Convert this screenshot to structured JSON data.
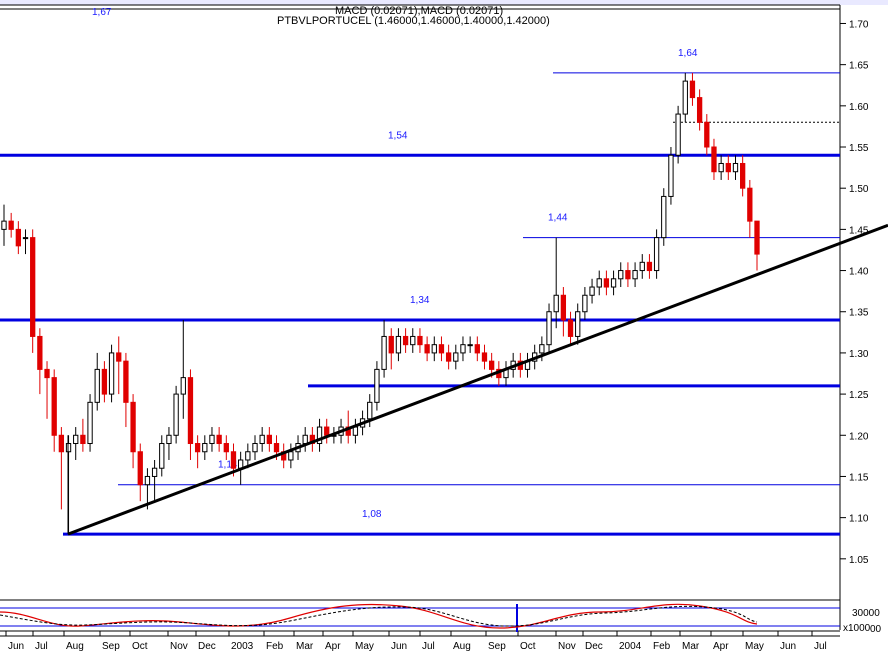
{
  "chart_data": {
    "type": "candlestick",
    "header_indicator": "MACD (0.02071),MACD (0.02071)",
    "title": "PTBVLPORTUCEL (1.46000,1.46000,1.40000,1.42000)",
    "top_panel_label": "1,67",
    "y_ticks": [
      "1.70",
      "1.65",
      "1.60",
      "1.55",
      "1.50",
      "1.45",
      "1.40",
      "1.35",
      "1.30",
      "1.25",
      "1.20",
      "1.15",
      "1.10",
      "1.05"
    ],
    "ylim": [
      1.0,
      1.72
    ],
    "x_ticks": [
      "Jun",
      "Jul",
      "Aug",
      "Sep",
      "Oct",
      "Nov",
      "Dec",
      "2003",
      "Feb",
      "Mar",
      "Apr",
      "May",
      "Jun",
      "Jul",
      "Aug",
      "Sep",
      "Oct",
      "Nov",
      "Dec",
      "2004",
      "Feb",
      "Mar",
      "Apr",
      "May",
      "Jun",
      "Jul"
    ],
    "levels": [
      {
        "value": 1.54,
        "label": "1,54",
        "style": "thick"
      },
      {
        "value": 1.34,
        "label": "1,34",
        "style": "thick"
      },
      {
        "value": 1.26,
        "label": "",
        "style": "thick"
      },
      {
        "value": 1.08,
        "label": "1,08",
        "style": "thick"
      },
      {
        "value": 1.64,
        "label": "1,64",
        "style": "thin"
      },
      {
        "value": 1.44,
        "label": "1,44",
        "style": "thin"
      },
      {
        "value": 1.14,
        "label": "1,14",
        "style": "thin"
      },
      {
        "value": 1.58,
        "label": "",
        "style": "dotted"
      }
    ],
    "trendline": {
      "from": [
        68,
        1.08
      ],
      "to": [
        888,
        1.455
      ]
    },
    "macd_ticks": [
      "30000",
      "x1000",
      "00"
    ],
    "candles": [
      [
        1.45,
        1.48,
        1.43,
        1.46
      ],
      [
        1.46,
        1.47,
        1.44,
        1.45
      ],
      [
        1.45,
        1.46,
        1.42,
        1.43
      ],
      [
        1.44,
        1.45,
        1.42,
        1.44
      ],
      [
        1.44,
        1.45,
        1.3,
        1.32
      ],
      [
        1.32,
        1.33,
        1.25,
        1.28
      ],
      [
        1.28,
        1.29,
        1.22,
        1.27
      ],
      [
        1.27,
        1.28,
        1.18,
        1.2
      ],
      [
        1.2,
        1.21,
        1.11,
        1.18
      ],
      [
        1.18,
        1.2,
        1.08,
        1.19
      ],
      [
        1.19,
        1.21,
        1.17,
        1.2
      ],
      [
        1.2,
        1.22,
        1.18,
        1.19
      ],
      [
        1.19,
        1.25,
        1.18,
        1.24
      ],
      [
        1.24,
        1.3,
        1.23,
        1.28
      ],
      [
        1.28,
        1.29,
        1.24,
        1.25
      ],
      [
        1.25,
        1.31,
        1.24,
        1.3
      ],
      [
        1.3,
        1.32,
        1.25,
        1.29
      ],
      [
        1.29,
        1.3,
        1.21,
        1.24
      ],
      [
        1.24,
        1.25,
        1.16,
        1.18
      ],
      [
        1.18,
        1.19,
        1.12,
        1.14
      ],
      [
        1.14,
        1.16,
        1.11,
        1.15
      ],
      [
        1.15,
        1.17,
        1.12,
        1.16
      ],
      [
        1.16,
        1.2,
        1.15,
        1.19
      ],
      [
        1.19,
        1.21,
        1.17,
        1.2
      ],
      [
        1.2,
        1.26,
        1.19,
        1.25
      ],
      [
        1.25,
        1.34,
        1.22,
        1.27
      ],
      [
        1.27,
        1.28,
        1.17,
        1.19
      ],
      [
        1.19,
        1.2,
        1.16,
        1.18
      ],
      [
        1.18,
        1.2,
        1.17,
        1.19
      ],
      [
        1.19,
        1.21,
        1.18,
        1.2
      ],
      [
        1.2,
        1.21,
        1.18,
        1.19
      ],
      [
        1.19,
        1.2,
        1.17,
        1.18
      ],
      [
        1.18,
        1.19,
        1.15,
        1.16
      ],
      [
        1.16,
        1.18,
        1.14,
        1.17
      ],
      [
        1.17,
        1.19,
        1.16,
        1.18
      ],
      [
        1.18,
        1.2,
        1.17,
        1.19
      ],
      [
        1.19,
        1.21,
        1.18,
        1.2
      ],
      [
        1.2,
        1.21,
        1.18,
        1.19
      ],
      [
        1.19,
        1.2,
        1.17,
        1.18
      ],
      [
        1.18,
        1.19,
        1.16,
        1.17
      ],
      [
        1.17,
        1.19,
        1.16,
        1.18
      ],
      [
        1.18,
        1.2,
        1.17,
        1.19
      ],
      [
        1.19,
        1.21,
        1.18,
        1.2
      ],
      [
        1.2,
        1.21,
        1.18,
        1.19
      ],
      [
        1.19,
        1.22,
        1.18,
        1.21
      ],
      [
        1.21,
        1.22,
        1.19,
        1.2
      ],
      [
        1.2,
        1.21,
        1.19,
        1.2
      ],
      [
        1.2,
        1.22,
        1.19,
        1.21
      ],
      [
        1.21,
        1.23,
        1.19,
        1.2
      ],
      [
        1.2,
        1.22,
        1.19,
        1.21
      ],
      [
        1.21,
        1.23,
        1.2,
        1.22
      ],
      [
        1.22,
        1.25,
        1.21,
        1.24
      ],
      [
        1.24,
        1.29,
        1.23,
        1.28
      ],
      [
        1.28,
        1.34,
        1.27,
        1.32
      ],
      [
        1.32,
        1.33,
        1.28,
        1.3
      ],
      [
        1.3,
        1.33,
        1.29,
        1.32
      ],
      [
        1.32,
        1.33,
        1.3,
        1.31
      ],
      [
        1.31,
        1.33,
        1.3,
        1.32
      ],
      [
        1.32,
        1.33,
        1.3,
        1.31
      ],
      [
        1.31,
        1.32,
        1.29,
        1.3
      ],
      [
        1.3,
        1.32,
        1.29,
        1.31
      ],
      [
        1.31,
        1.32,
        1.29,
        1.3
      ],
      [
        1.3,
        1.31,
        1.28,
        1.29
      ],
      [
        1.29,
        1.31,
        1.28,
        1.3
      ],
      [
        1.3,
        1.32,
        1.29,
        1.31
      ],
      [
        1.31,
        1.32,
        1.3,
        1.31
      ],
      [
        1.31,
        1.32,
        1.29,
        1.3
      ],
      [
        1.3,
        1.31,
        1.28,
        1.29
      ],
      [
        1.29,
        1.3,
        1.27,
        1.28
      ],
      [
        1.28,
        1.29,
        1.26,
        1.27
      ],
      [
        1.27,
        1.29,
        1.26,
        1.28
      ],
      [
        1.28,
        1.3,
        1.27,
        1.29
      ],
      [
        1.29,
        1.3,
        1.27,
        1.28
      ],
      [
        1.28,
        1.3,
        1.27,
        1.29
      ],
      [
        1.29,
        1.31,
        1.28,
        1.3
      ],
      [
        1.3,
        1.32,
        1.29,
        1.31
      ],
      [
        1.31,
        1.36,
        1.3,
        1.35
      ],
      [
        1.35,
        1.44,
        1.33,
        1.37
      ],
      [
        1.37,
        1.38,
        1.32,
        1.34
      ],
      [
        1.34,
        1.35,
        1.31,
        1.32
      ],
      [
        1.32,
        1.36,
        1.31,
        1.35
      ],
      [
        1.35,
        1.38,
        1.34,
        1.37
      ],
      [
        1.37,
        1.39,
        1.36,
        1.38
      ],
      [
        1.38,
        1.4,
        1.37,
        1.39
      ],
      [
        1.39,
        1.4,
        1.37,
        1.38
      ],
      [
        1.38,
        1.4,
        1.37,
        1.39
      ],
      [
        1.39,
        1.41,
        1.38,
        1.4
      ],
      [
        1.4,
        1.41,
        1.38,
        1.39
      ],
      [
        1.39,
        1.41,
        1.38,
        1.4
      ],
      [
        1.4,
        1.42,
        1.39,
        1.41
      ],
      [
        1.41,
        1.42,
        1.39,
        1.4
      ],
      [
        1.4,
        1.45,
        1.39,
        1.44
      ],
      [
        1.44,
        1.5,
        1.43,
        1.49
      ],
      [
        1.49,
        1.55,
        1.48,
        1.54
      ],
      [
        1.54,
        1.6,
        1.53,
        1.59
      ],
      [
        1.59,
        1.64,
        1.58,
        1.63
      ],
      [
        1.63,
        1.64,
        1.6,
        1.61
      ],
      [
        1.61,
        1.62,
        1.57,
        1.58
      ],
      [
        1.58,
        1.59,
        1.54,
        1.55
      ],
      [
        1.55,
        1.56,
        1.51,
        1.52
      ],
      [
        1.52,
        1.54,
        1.51,
        1.53
      ],
      [
        1.53,
        1.54,
        1.51,
        1.52
      ],
      [
        1.52,
        1.54,
        1.51,
        1.53
      ],
      [
        1.53,
        1.54,
        1.49,
        1.5
      ],
      [
        1.5,
        1.51,
        1.44,
        1.46
      ],
      [
        1.46,
        1.46,
        1.4,
        1.42
      ]
    ]
  }
}
